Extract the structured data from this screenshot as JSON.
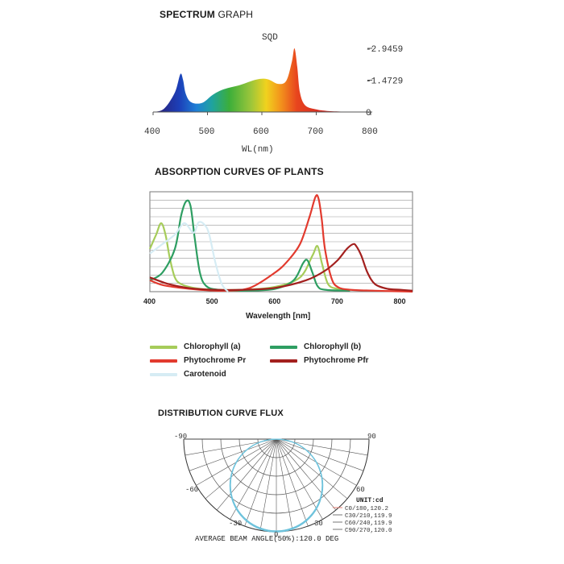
{
  "spectrum": {
    "title_bold": "SPECTRUM",
    "title_rest": "GRAPH",
    "series_label": "SQD",
    "xlabel": "WL(nm)",
    "y_tick_labels": [
      "-2.9459",
      "-1.4729",
      "0"
    ],
    "y_tick_values": [
      2.9459,
      1.4729,
      0
    ],
    "x_tick_labels": [
      "400",
      "500",
      "600",
      "700",
      "800"
    ]
  },
  "absorption": {
    "title": "ABSORPTION CURVES OF PLANTS",
    "xlabel": "Wavelength [nm]",
    "x_tick_labels": [
      "400",
      "500",
      "600",
      "700",
      "800"
    ],
    "legend": [
      {
        "label": "Chlorophyll (a)",
        "color": "#a6cc5a"
      },
      {
        "label": "Chlorophyll (b)",
        "color": "#2e9e62"
      },
      {
        "label": "Phytochrome Pr",
        "color": "#e23a2e"
      },
      {
        "label": "Phytochrome Pfr",
        "color": "#a3201e"
      },
      {
        "label": "Carotenoid",
        "color": "#d6ecf4"
      }
    ]
  },
  "distribution": {
    "title": "DISTRIBUTION CURVE FLUX",
    "angle_labels": [
      "-90",
      "90",
      "-60",
      "60",
      "-30",
      "30",
      "0"
    ],
    "unit_label": "UNIT:cd",
    "series_labels": [
      "C0/180,120.2",
      "C30/210,119.9",
      "C60/240,119.9",
      "C90/270,120.0"
    ],
    "beam_angle_text": "AVERAGE BEAM ANGLE(50%):120.0 DEG"
  },
  "chart_data": [
    {
      "type": "area",
      "title": "SPECTRUM GRAPH",
      "xlabel": "WL(nm)",
      "xlim": [
        400,
        800
      ],
      "ylim": [
        0,
        2.9459
      ],
      "series": [
        {
          "name": "SQD",
          "x": [
            400,
            420,
            440,
            450,
            455,
            460,
            470,
            490,
            510,
            530,
            560,
            590,
            610,
            630,
            645,
            655,
            660,
            665,
            670,
            680,
            700,
            720,
            750,
            800
          ],
          "values": [
            0.0,
            0.15,
            0.9,
            1.75,
            1.5,
            0.85,
            0.45,
            0.42,
            0.8,
            1.05,
            1.25,
            1.5,
            1.52,
            1.3,
            1.45,
            2.3,
            2.9459,
            2.1,
            0.9,
            0.3,
            0.12,
            0.05,
            0.02,
            0.0
          ]
        }
      ]
    },
    {
      "type": "line",
      "title": "ABSORPTION CURVES OF PLANTS",
      "xlabel": "Wavelength [nm]",
      "xlim": [
        400,
        820
      ],
      "ylim": [
        0,
        1
      ],
      "grid": true,
      "series": [
        {
          "name": "Chlorophyll (a)",
          "color": "#a6cc5a",
          "x": [
            400,
            410,
            418,
            425,
            432,
            440,
            450,
            470,
            500,
            550,
            600,
            640,
            660,
            668,
            675,
            685,
            700,
            720
          ],
          "values": [
            0.45,
            0.6,
            0.72,
            0.6,
            0.35,
            0.15,
            0.08,
            0.04,
            0.02,
            0.02,
            0.05,
            0.15,
            0.38,
            0.48,
            0.3,
            0.08,
            0.03,
            0.02
          ]
        },
        {
          "name": "Chlorophyll (b)",
          "color": "#2e9e62",
          "x": [
            400,
            420,
            440,
            450,
            458,
            465,
            472,
            480,
            490,
            510,
            550,
            600,
            630,
            645,
            652,
            660,
            668,
            680,
            720
          ],
          "values": [
            0.12,
            0.2,
            0.45,
            0.8,
            0.95,
            0.9,
            0.55,
            0.2,
            0.06,
            0.02,
            0.01,
            0.03,
            0.12,
            0.3,
            0.33,
            0.2,
            0.06,
            0.02,
            0.01
          ]
        },
        {
          "name": "Phytochrome Pr",
          "color": "#e23a2e",
          "x": [
            400,
            420,
            450,
            480,
            520,
            560,
            600,
            620,
            640,
            655,
            665,
            670,
            675,
            680,
            690,
            700,
            720,
            760,
            820
          ],
          "values": [
            0.12,
            0.07,
            0.04,
            0.02,
            0.01,
            0.04,
            0.2,
            0.32,
            0.5,
            0.78,
            1.0,
            0.97,
            0.75,
            0.45,
            0.15,
            0.05,
            0.02,
            0.01,
            0.0
          ]
        },
        {
          "name": "Phytochrome Pfr",
          "color": "#a3201e",
          "x": [
            400,
            430,
            460,
            500,
            550,
            600,
            650,
            680,
            700,
            715,
            725,
            730,
            738,
            748,
            760,
            780,
            800,
            820
          ],
          "values": [
            0.15,
            0.08,
            0.04,
            0.02,
            0.02,
            0.04,
            0.12,
            0.22,
            0.33,
            0.45,
            0.5,
            0.48,
            0.38,
            0.2,
            0.08,
            0.03,
            0.02,
            0.01
          ]
        },
        {
          "name": "Carotenoid",
          "color": "#d6ecf4",
          "x": [
            400,
            420,
            440,
            455,
            470,
            478,
            488,
            495,
            505,
            515,
            525
          ],
          "values": [
            0.4,
            0.5,
            0.6,
            0.72,
            0.62,
            0.73,
            0.7,
            0.6,
            0.3,
            0.08,
            0.0
          ]
        }
      ]
    },
    {
      "type": "polar",
      "title": "DISTRIBUTION CURVE FLUX",
      "unit": "cd",
      "series": [
        {
          "name": "C0/180",
          "peak_cd": 120.2
        },
        {
          "name": "C30/210",
          "peak_cd": 119.9
        },
        {
          "name": "C60/240",
          "peak_cd": 119.9
        },
        {
          "name": "C90/270",
          "peak_cd": 120.0
        }
      ],
      "beam_angle_deg": 120.0
    }
  ]
}
